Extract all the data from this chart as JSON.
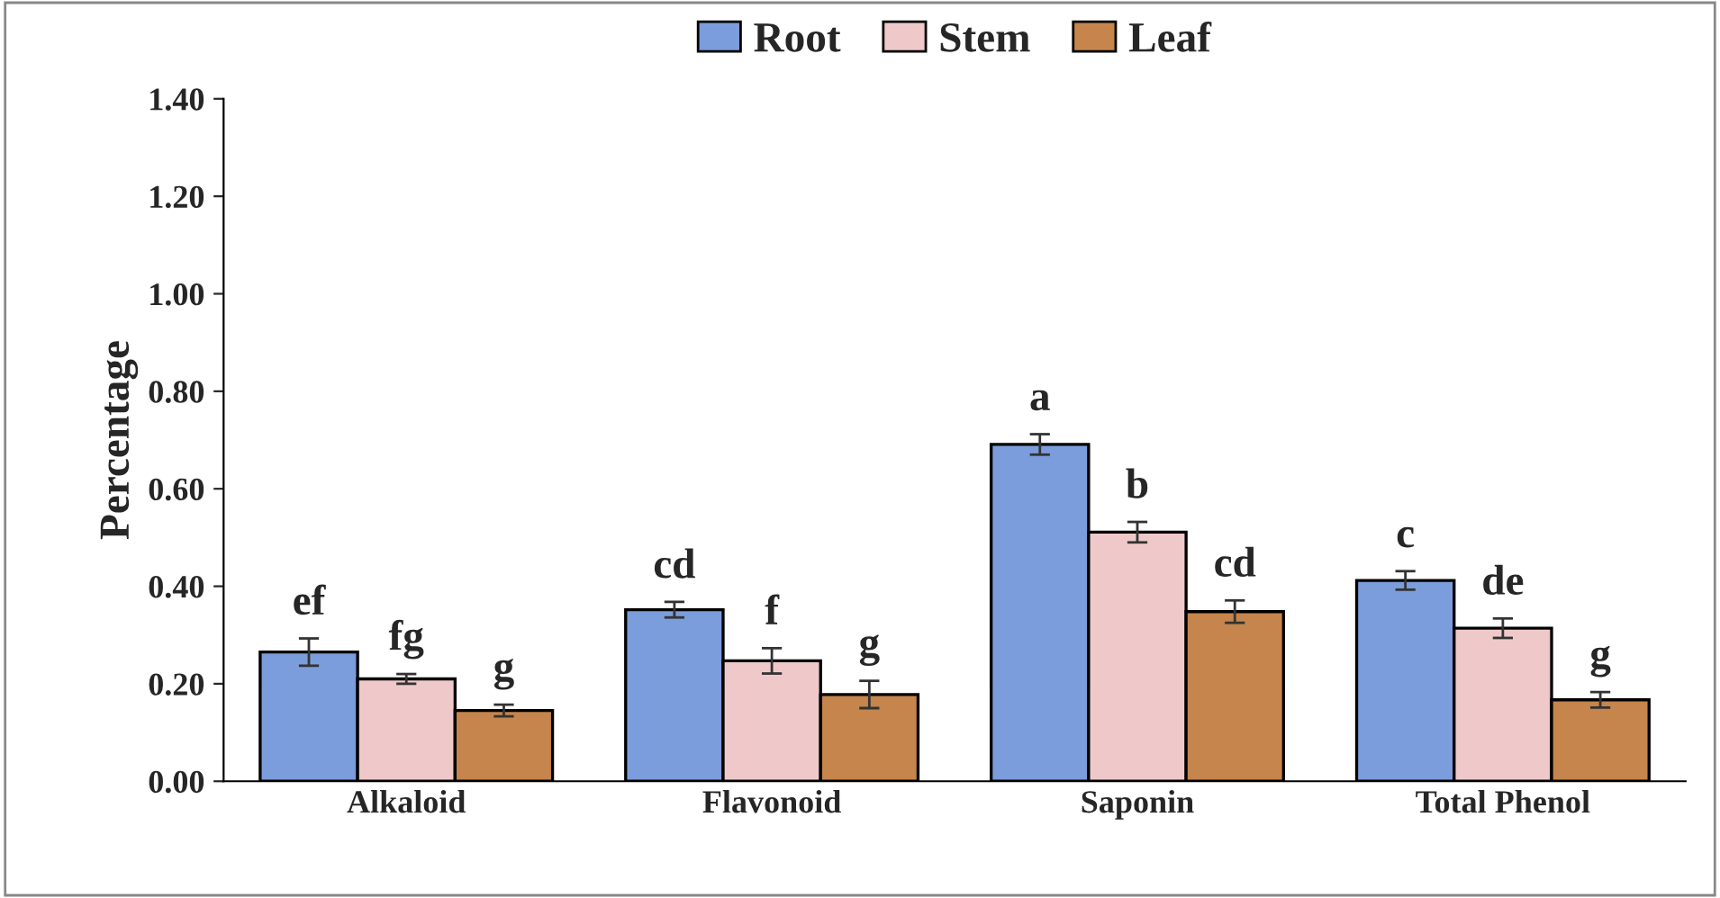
{
  "chart_data": {
    "type": "bar",
    "ylabel": "Percentage",
    "categories": [
      "Alkaloid",
      "Flavonoid",
      "Saponin",
      "Total Phenol"
    ],
    "series": [
      {
        "name": "Root",
        "color": "#7b9ddb",
        "values": [
          0.265,
          0.352,
          0.691,
          0.412
        ],
        "errors": [
          0.028,
          0.016,
          0.021,
          0.019
        ],
        "value_labels": [
          "ef",
          "cd",
          "a",
          "c"
        ]
      },
      {
        "name": "Stem",
        "color": "#efc9c9",
        "values": [
          0.21,
          0.247,
          0.511,
          0.314
        ],
        "errors": [
          0.01,
          0.026,
          0.021,
          0.02
        ],
        "value_labels": [
          "fg",
          "f",
          "b",
          "de"
        ]
      },
      {
        "name": "Leaf",
        "color": "#c5854c",
        "values": [
          0.145,
          0.178,
          0.348,
          0.167
        ],
        "errors": [
          0.012,
          0.028,
          0.023,
          0.016
        ],
        "value_labels": [
          "g",
          "g",
          "cd",
          "g"
        ]
      }
    ],
    "ylim": [
      0,
      1.4
    ],
    "yticks": [
      {
        "value": 0,
        "label": "0.00"
      },
      {
        "value": 0.2,
        "label": "0.20"
      },
      {
        "value": 0.4,
        "label": "0.40"
      },
      {
        "value": 0.6,
        "label": "0.60"
      },
      {
        "value": 0.8,
        "label": "0.80"
      },
      {
        "value": 1.0,
        "label": "1.00"
      },
      {
        "value": 1.2,
        "label": "1.20"
      },
      {
        "value": 1.4,
        "label": "1.40"
      }
    ],
    "grid": false,
    "legend": "top"
  }
}
